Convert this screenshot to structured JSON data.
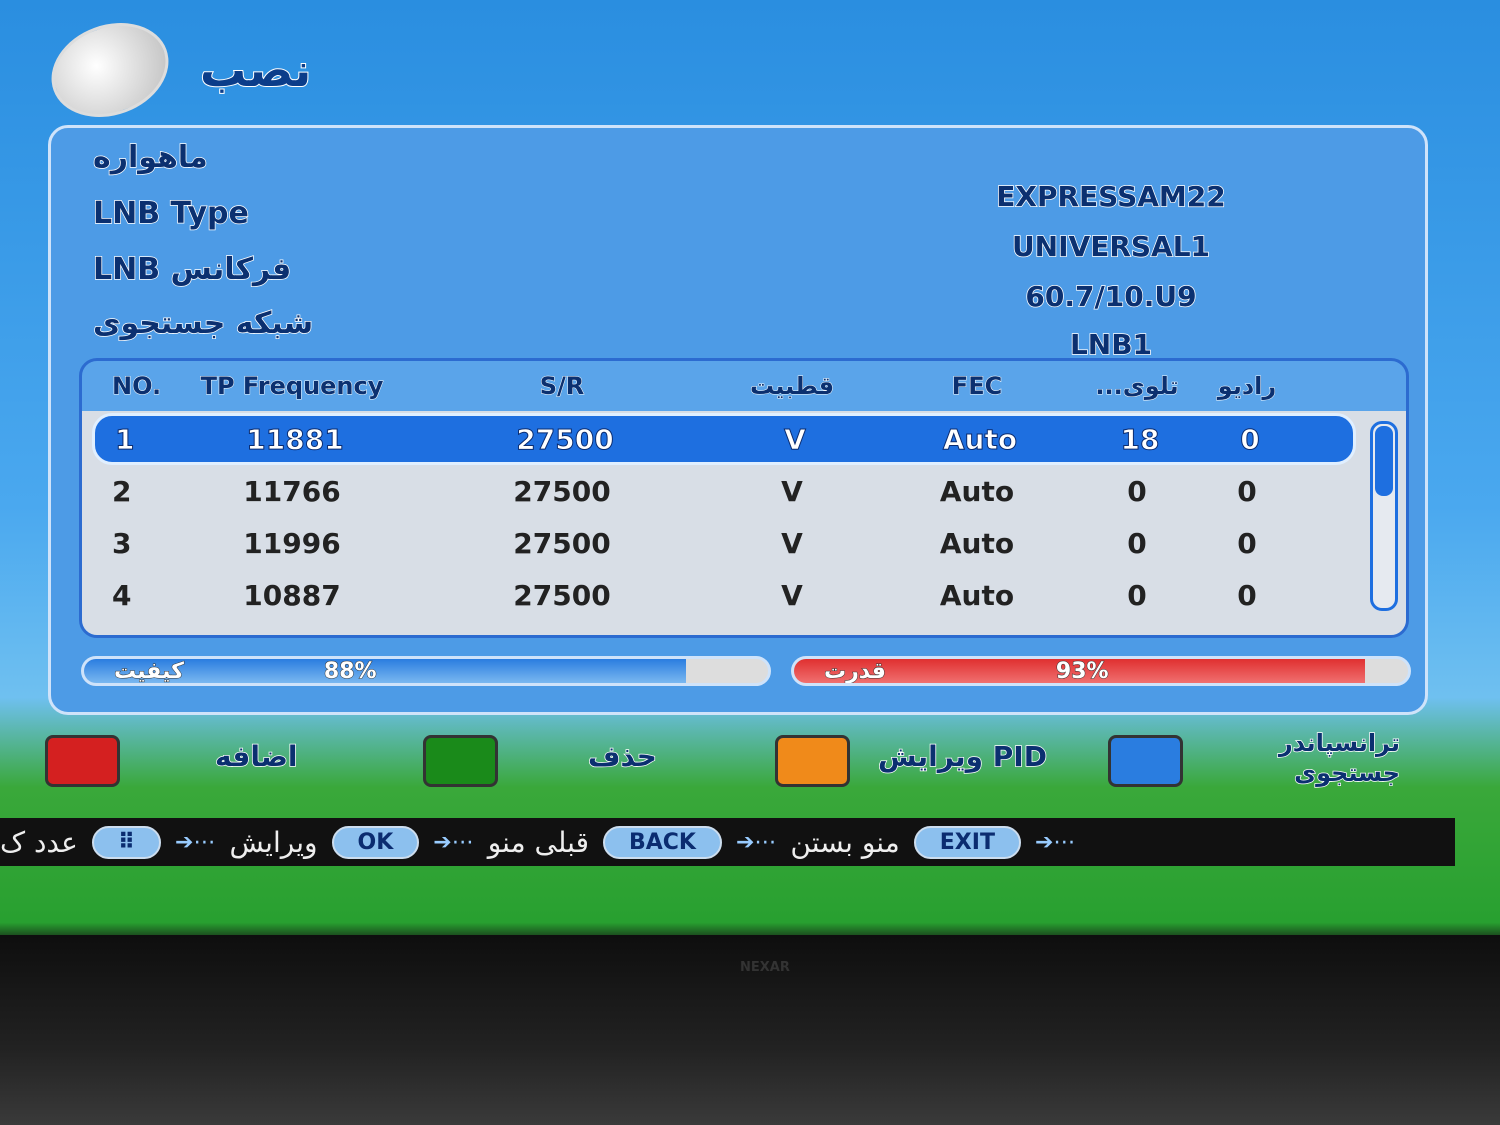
{
  "title": "نصب",
  "fields": [
    {
      "label": "ماهواره",
      "value": "EXPRESSAM22"
    },
    {
      "label": "LNB Type",
      "value": "UNIVERSAL1"
    },
    {
      "label": "LNB فرکانس",
      "value": "60.7/10.U9"
    },
    {
      "label": "شبکه جستجوی",
      "value": "LNB1"
    }
  ],
  "table": {
    "headers": [
      "NO.",
      "TP Frequency",
      "S/R",
      "قطبیت",
      "FEC",
      "...تلوی",
      "رادیو"
    ],
    "rows": [
      [
        "1",
        "11881",
        "27500",
        "V",
        "Auto",
        "18",
        "0"
      ],
      [
        "2",
        "11766",
        "27500",
        "V",
        "Auto",
        "0",
        "0"
      ],
      [
        "3",
        "11996",
        "27500",
        "V",
        "Auto",
        "0",
        "0"
      ],
      [
        "4",
        "10887",
        "27500",
        "V",
        "Auto",
        "0",
        "0"
      ]
    ],
    "selected_row": 0
  },
  "quality": {
    "label": "کیفیت",
    "value": "88%",
    "percent": 88,
    "color": "#2a7de0"
  },
  "strength": {
    "label": "قدرت",
    "value": "93%",
    "percent": 93,
    "color": "#e03030"
  },
  "color_buttons": [
    {
      "label": "اضافه",
      "color": "#d42020"
    },
    {
      "label": "حذف",
      "color": "#1a8a1a"
    },
    {
      "label": "PID ویرایش",
      "color": "#f08a1a"
    },
    {
      "label": "ترانسپاندر جستجوی",
      "color": "#2a7de0"
    }
  ],
  "footer": [
    {
      "key": "EXIT",
      "text": "منو بستن"
    },
    {
      "key": "BACK",
      "text": "قبلی منو"
    },
    {
      "key": "OK",
      "text": "ویرایش"
    },
    {
      "key": "⠿",
      "text": "عدد ک"
    }
  ],
  "tv_brand": "NEXAR"
}
